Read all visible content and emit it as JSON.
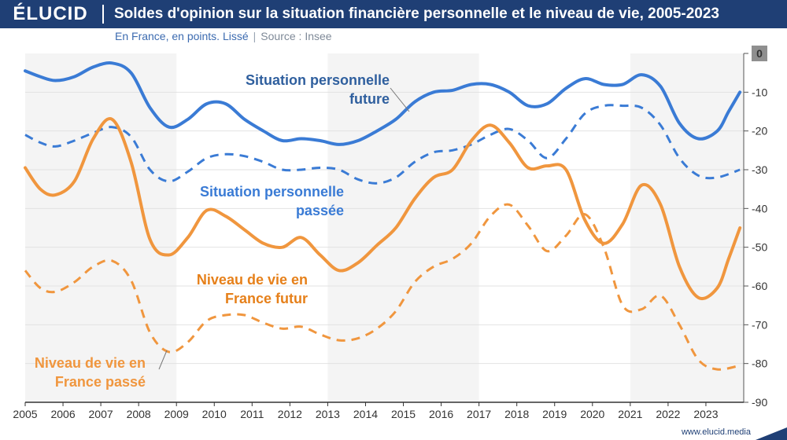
{
  "brand": "ÉLUCID",
  "title": "Soldes d'opinion sur la situation financière personnelle et le niveau de vie, 2005-2023",
  "subtitle": "En France, en points. Lissé",
  "source": "Source : Insee",
  "footer_url": "www.elucid.media",
  "chart_data": {
    "type": "line",
    "title": "Soldes d'opinion sur la situation financière personnelle et le niveau de vie, 2005-2023",
    "subtitle": "En France, en points. Lissé",
    "xlim": [
      2005,
      2024
    ],
    "ylim": [
      -90,
      0
    ],
    "x_ticks": [
      "2005",
      "2006",
      "2007",
      "2008",
      "2009",
      "2010",
      "2011",
      "2012",
      "2013",
      "2014",
      "2015",
      "2016",
      "2017",
      "2018",
      "2019",
      "2020",
      "2021",
      "2022",
      "2023"
    ],
    "y_ticks": [
      "0",
      "-10",
      "-20",
      "-30",
      "-40",
      "-50",
      "-60",
      "-70",
      "-80",
      "-90"
    ],
    "y_axis_position": "right",
    "grid": "horizontal",
    "shaded_bands": [
      [
        2005,
        2009
      ],
      [
        2013,
        2017
      ],
      [
        2021,
        2024
      ]
    ],
    "series": [
      {
        "name": "Situation personnelle future",
        "color": "#3a7bd5",
        "style": "solid",
        "x": [
          2005,
          2005.4,
          2005.8,
          2006.3,
          2006.8,
          2007.3,
          2007.8,
          2008.3,
          2008.8,
          2009.3,
          2009.8,
          2010.3,
          2010.8,
          2011.3,
          2011.8,
          2012.3,
          2012.8,
          2013.3,
          2013.8,
          2014.3,
          2014.8,
          2015.3,
          2015.8,
          2016.3,
          2016.8,
          2017.3,
          2017.8,
          2018.3,
          2018.8,
          2019.3,
          2019.8,
          2020.3,
          2020.8,
          2021.3,
          2021.8,
          2022.3,
          2022.8,
          2023.3,
          2023.6,
          2023.9
        ],
        "y": [
          -4.5,
          -6,
          -7,
          -6,
          -3.5,
          -2.5,
          -5,
          -14,
          -19,
          -17,
          -13,
          -13,
          -17,
          -20,
          -22.5,
          -22,
          -22.5,
          -23.5,
          -22.5,
          -20,
          -17,
          -12.5,
          -10,
          -9.5,
          -8,
          -8,
          -10,
          -13.5,
          -13,
          -9,
          -6.5,
          -8,
          -8,
          -5.5,
          -8.5,
          -18,
          -22,
          -20,
          -15,
          -10
        ]
      },
      {
        "name": "Situation personnelle passée",
        "color": "#3a7bd5",
        "style": "dashed",
        "x": [
          2005,
          2005.4,
          2005.8,
          2006.3,
          2006.8,
          2007.3,
          2007.8,
          2008.3,
          2008.8,
          2009.3,
          2009.8,
          2010.3,
          2010.8,
          2011.3,
          2011.8,
          2012.3,
          2012.8,
          2013.3,
          2013.8,
          2014.3,
          2014.8,
          2015.3,
          2015.8,
          2016.3,
          2016.8,
          2017.3,
          2017.8,
          2018.3,
          2018.8,
          2019.3,
          2019.8,
          2020.3,
          2020.8,
          2021.3,
          2021.8,
          2022.3,
          2022.8,
          2023.3,
          2023.9
        ],
        "y": [
          -21,
          -23,
          -24,
          -22.5,
          -20.5,
          -19,
          -21.5,
          -30,
          -33,
          -30.5,
          -27,
          -26,
          -26.5,
          -28,
          -30,
          -30,
          -29.5,
          -30,
          -32.5,
          -33.5,
          -32,
          -28,
          -25.5,
          -25,
          -23.5,
          -21,
          -19.5,
          -22.5,
          -27,
          -22,
          -15.5,
          -13.5,
          -13.5,
          -14,
          -18.5,
          -27,
          -31.5,
          -32,
          -30
        ]
      },
      {
        "name": "Niveau de vie en France futur",
        "color": "#f0963e",
        "style": "solid",
        "x": [
          2005,
          2005.4,
          2005.8,
          2006.3,
          2006.8,
          2007.3,
          2007.8,
          2008.3,
          2008.8,
          2009.3,
          2009.8,
          2010.3,
          2010.8,
          2011.3,
          2011.8,
          2012.3,
          2012.8,
          2013.3,
          2013.8,
          2014.3,
          2014.8,
          2015.3,
          2015.8,
          2016.3,
          2016.8,
          2017.3,
          2017.8,
          2018.3,
          2018.8,
          2019.3,
          2019.8,
          2020.3,
          2020.8,
          2021.3,
          2021.8,
          2022.3,
          2022.8,
          2023.3,
          2023.6,
          2023.9
        ],
        "y": [
          -29.5,
          -35,
          -36.5,
          -33,
          -22,
          -17,
          -28,
          -48,
          -52,
          -47.5,
          -40.5,
          -42,
          -45.5,
          -49,
          -50,
          -47.5,
          -52,
          -56,
          -54,
          -49.5,
          -45,
          -37.5,
          -32,
          -30,
          -22.5,
          -18.5,
          -23,
          -29.5,
          -29,
          -30,
          -43,
          -49,
          -44,
          -34,
          -39,
          -55,
          -63,
          -60.5,
          -53,
          -45
        ]
      },
      {
        "name": "Niveau de vie en France passé",
        "color": "#f0963e",
        "style": "dashed",
        "x": [
          2005,
          2005.4,
          2005.8,
          2006.3,
          2006.8,
          2007.3,
          2007.8,
          2008.3,
          2008.8,
          2009.3,
          2009.8,
          2010.3,
          2010.8,
          2011.3,
          2011.8,
          2012.3,
          2012.8,
          2013.3,
          2013.8,
          2014.3,
          2014.8,
          2015.3,
          2015.8,
          2016.3,
          2016.8,
          2017.3,
          2017.8,
          2018.3,
          2018.8,
          2019.3,
          2019.8,
          2020.3,
          2020.8,
          2021.3,
          2021.8,
          2022.3,
          2022.8,
          2023.3,
          2023.9
        ],
        "y": [
          -56,
          -60.5,
          -61.5,
          -59,
          -55,
          -53.5,
          -58.5,
          -72,
          -77,
          -74.5,
          -69,
          -67.5,
          -67.5,
          -69.5,
          -71,
          -70.5,
          -72.5,
          -74,
          -73.5,
          -71,
          -66.5,
          -59,
          -55,
          -53,
          -49,
          -42,
          -39,
          -44.5,
          -51,
          -47,
          -41.5,
          -50,
          -65,
          -66,
          -62.5,
          -70,
          -79,
          -81.5,
          -80.5
        ]
      }
    ],
    "labels": [
      {
        "series": 0,
        "text": [
          "Situation personnelle",
          "future"
        ]
      },
      {
        "series": 1,
        "text": [
          "Situation personnelle",
          "passée"
        ]
      },
      {
        "series": 2,
        "text": [
          "Niveau de vie en",
          "France futur"
        ]
      },
      {
        "series": 3,
        "text": [
          "Niveau de vie en",
          "France passé"
        ]
      }
    ]
  }
}
